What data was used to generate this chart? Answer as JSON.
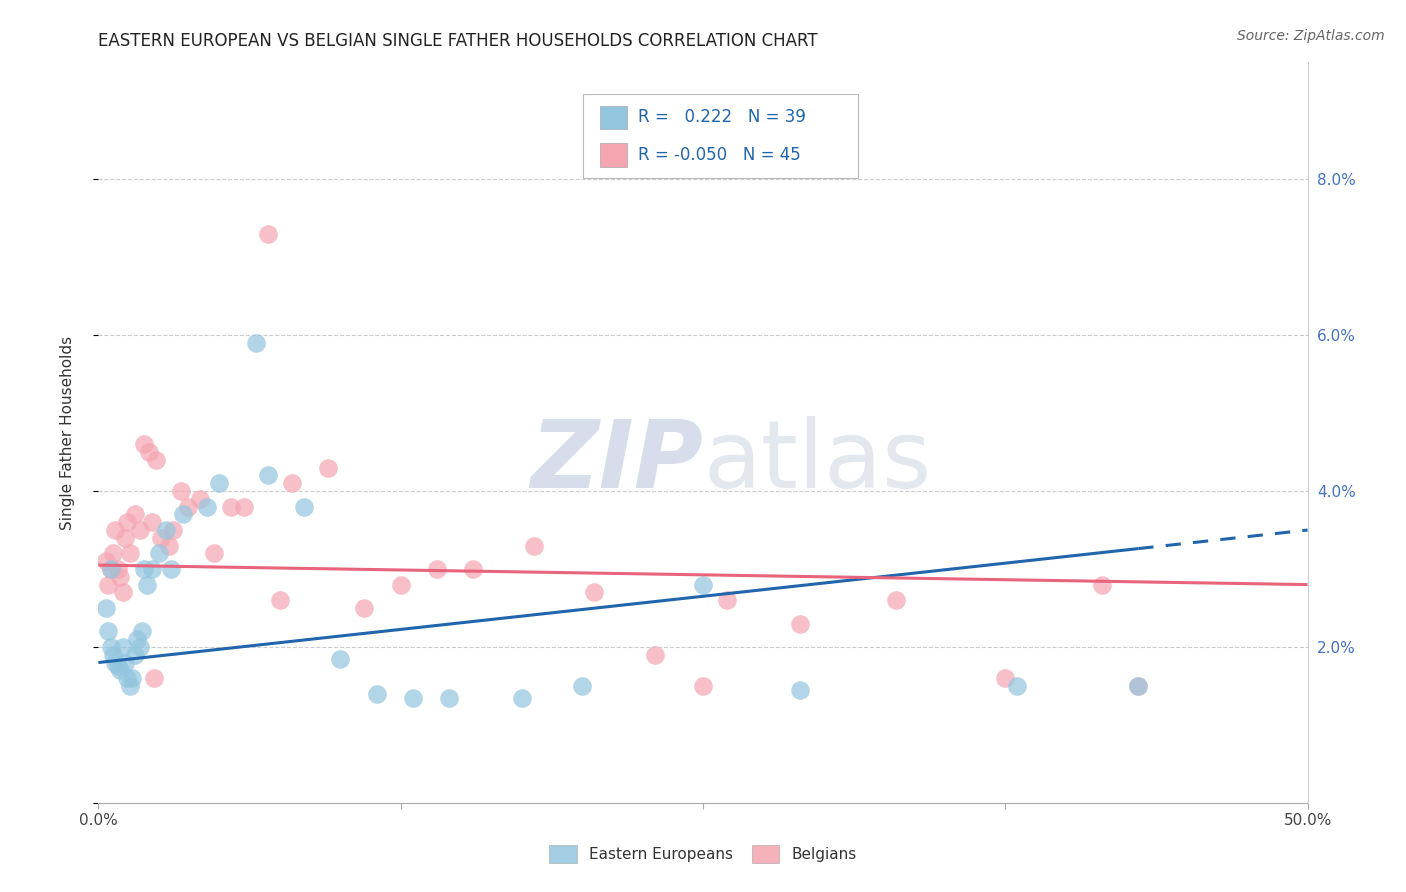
{
  "title": "EASTERN EUROPEAN VS BELGIAN SINGLE FATHER HOUSEHOLDS CORRELATION CHART",
  "source": "Source: ZipAtlas.com",
  "ylabel": "Single Father Households",
  "xlim": [
    0.0,
    50.0
  ],
  "ylim": [
    0.0,
    9.5
  ],
  "legend_r_blue": "0.222",
  "legend_n_blue": "39",
  "legend_r_pink": "-0.050",
  "legend_n_pink": "45",
  "blue_color": "#92c5de",
  "pink_color": "#f4a5b0",
  "line_blue": "#2166ac",
  "line_pink": "#e8637c",
  "watermark": "ZIPatlas",
  "blue_x": [
    0.3,
    0.4,
    0.5,
    0.6,
    0.7,
    0.8,
    0.9,
    1.0,
    1.1,
    1.2,
    1.3,
    1.4,
    1.5,
    1.6,
    1.7,
    1.8,
    2.0,
    2.2,
    2.5,
    2.8,
    3.0,
    3.5,
    4.5,
    5.0,
    6.5,
    7.0,
    8.5,
    10.0,
    11.5,
    13.0,
    14.5,
    17.5,
    20.0,
    25.0,
    29.0,
    38.0,
    43.0,
    0.5,
    1.9
  ],
  "blue_y": [
    2.5,
    2.2,
    2.0,
    1.9,
    1.8,
    1.75,
    1.7,
    2.0,
    1.8,
    1.6,
    1.5,
    1.6,
    1.9,
    2.1,
    2.0,
    2.2,
    2.8,
    3.0,
    3.2,
    3.5,
    3.0,
    3.7,
    3.8,
    4.1,
    5.9,
    4.2,
    3.8,
    1.85,
    1.4,
    1.35,
    1.35,
    1.35,
    1.5,
    2.8,
    1.45,
    1.5,
    1.5,
    3.0,
    3.0
  ],
  "pink_x": [
    0.3,
    0.4,
    0.5,
    0.6,
    0.7,
    0.8,
    0.9,
    1.0,
    1.1,
    1.3,
    1.5,
    1.7,
    1.9,
    2.1,
    2.4,
    2.6,
    2.9,
    3.1,
    3.4,
    3.7,
    4.2,
    4.8,
    5.5,
    7.0,
    8.0,
    9.5,
    11.0,
    12.5,
    14.0,
    15.5,
    18.0,
    20.5,
    23.0,
    26.0,
    29.0,
    33.0,
    37.5,
    41.5,
    6.0,
    7.5,
    1.2,
    2.2,
    2.3,
    25.0,
    43.0
  ],
  "pink_y": [
    3.1,
    2.8,
    3.0,
    3.2,
    3.5,
    3.0,
    2.9,
    2.7,
    3.4,
    3.2,
    3.7,
    3.5,
    4.6,
    4.5,
    4.4,
    3.4,
    3.3,
    3.5,
    4.0,
    3.8,
    3.9,
    3.2,
    3.8,
    7.3,
    4.1,
    4.3,
    2.5,
    2.8,
    3.0,
    3.0,
    3.3,
    2.7,
    1.9,
    2.6,
    2.3,
    2.6,
    1.6,
    2.8,
    3.8,
    2.6,
    3.6,
    3.6,
    1.6,
    1.5,
    1.5
  ],
  "line_blue_x0": 0.0,
  "line_blue_y0": 1.8,
  "line_blue_x1": 50.0,
  "line_blue_y1": 3.5,
  "line_pink_x0": 0.0,
  "line_pink_y0": 3.05,
  "line_pink_x1": 50.0,
  "line_pink_y1": 2.8,
  "dash_start": 43.0
}
